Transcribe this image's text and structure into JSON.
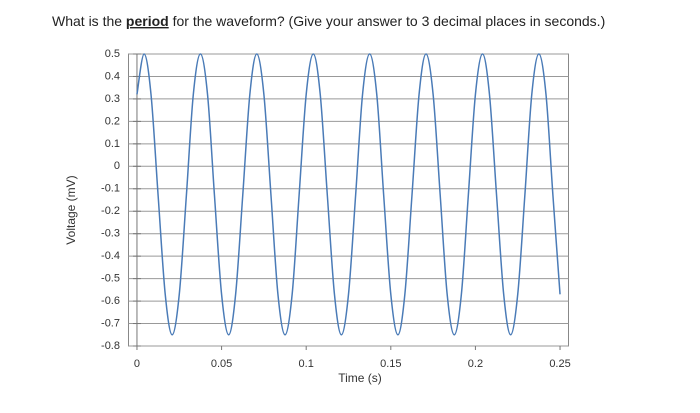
{
  "question": {
    "before": "What is the ",
    "emphasis": "period",
    "after": " for the waveform? (Give your answer to 3 decimal places in seconds.)"
  },
  "chart_data": {
    "type": "line",
    "xlabel": "Time (s)",
    "ylabel": "Voltage (mV)",
    "x": [
      0,
      0.0042,
      0.0083,
      0.0125,
      0.0167,
      0.0208,
      0.025,
      0.0292,
      0.0333,
      0.0375,
      0.0417,
      0.0458,
      0.05,
      0.0542,
      0.0583,
      0.0625,
      0.0667,
      0.0708,
      0.075,
      0.0792,
      0.0833,
      0.0875,
      0.0917,
      0.0958,
      0.1,
      0.1042,
      0.1083,
      0.1125,
      0.1167,
      0.1208,
      0.125,
      0.1292,
      0.1333,
      0.1375,
      0.1417,
      0.1458,
      0.15,
      0.1542,
      0.1583,
      0.1625,
      0.1667,
      0.1708,
      0.175,
      0.1792,
      0.1833,
      0.1875,
      0.1917,
      0.1958,
      0.2,
      0.2042,
      0.2083,
      0.2125,
      0.2167,
      0.2208,
      0.225,
      0.2292,
      0.2333,
      0.2375,
      0.2417,
      0.2458,
      0.25
    ],
    "series": [
      {
        "color": "#4a7bb7",
        "values": [
          0.32,
          0.5,
          0.32,
          -0.13,
          -0.57,
          -0.75,
          -0.57,
          -0.13,
          0.32,
          0.5,
          0.32,
          -0.13,
          -0.57,
          -0.75,
          -0.57,
          -0.13,
          0.32,
          0.5,
          0.32,
          -0.13,
          -0.57,
          -0.75,
          -0.57,
          -0.13,
          0.32,
          0.5,
          0.32,
          -0.13,
          -0.57,
          -0.75,
          -0.57,
          -0.13,
          0.32,
          0.5,
          0.32,
          -0.13,
          -0.57,
          -0.75,
          -0.57,
          -0.13,
          0.32,
          0.5,
          0.32,
          -0.13,
          -0.57,
          -0.75,
          -0.57,
          -0.13,
          0.32,
          0.5,
          0.32,
          -0.13,
          -0.57,
          -0.75,
          -0.57,
          -0.13,
          0.32,
          0.5,
          0.32,
          -0.13,
          -0.57
        ]
      }
    ],
    "xlim": [
      -0.005,
      0.255
    ],
    "xticks": [
      0,
      0.05,
      0.1,
      0.15,
      0.2,
      0.25
    ],
    "ylim": [
      -0.8,
      0.5
    ],
    "yticks": [
      0.5,
      0.4,
      0.3,
      0.2,
      0.1,
      0,
      -0.1,
      -0.2,
      -0.3,
      -0.4,
      -0.5,
      -0.6,
      -0.7,
      -0.8
    ],
    "grid": true
  }
}
